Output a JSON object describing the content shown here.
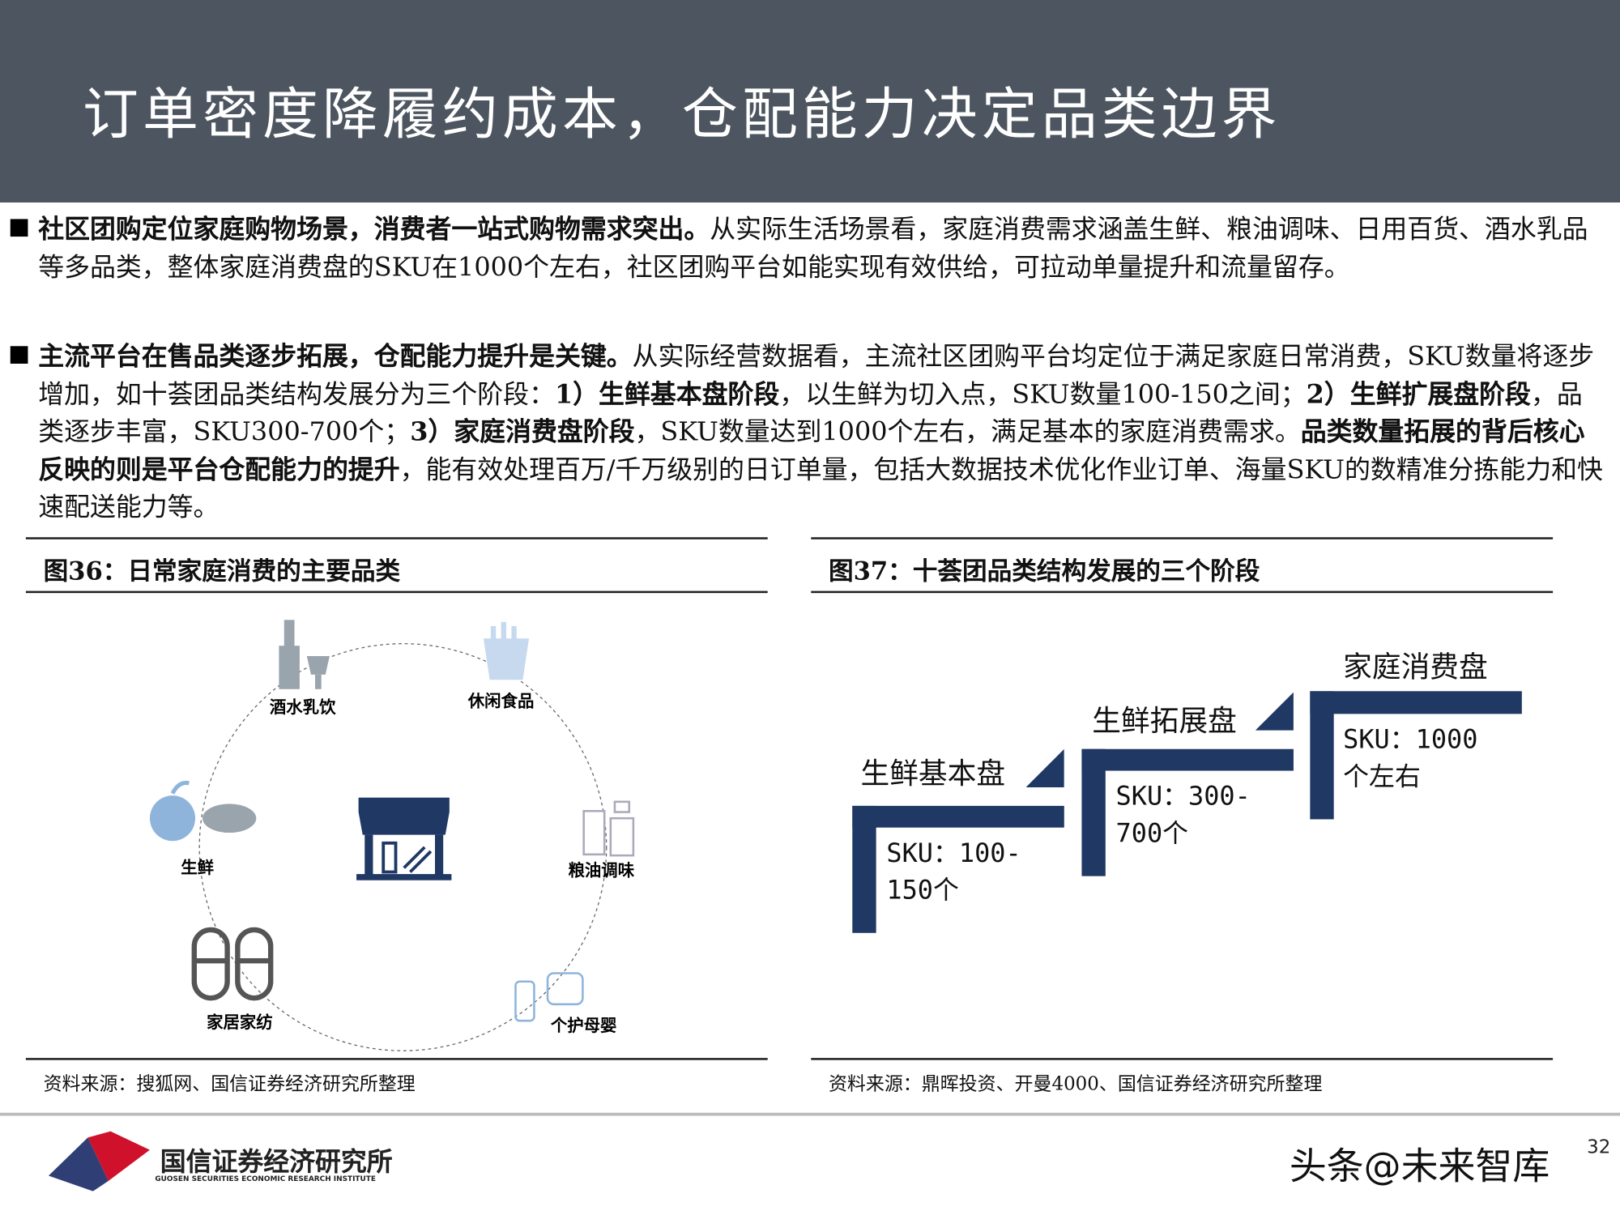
{
  "header": {
    "title": "订单密度降履约成本，仓配能力决定品类边界"
  },
  "paragraphs": [
    {
      "bold": "社区团购定位家庭购物场景，消费者一站式购物需求突出。",
      "text": "从实际生活场景看，家庭消费需求涵盖生鲜、粮油调味、日用百货、酒水乳品等多品类，整体家庭消费盘的SKU在1000个左右，社区团购平台如能实现有效供给，可拉动单量提升和流量留存。"
    },
    {
      "bold": "主流平台在售品类逐步拓展，仓配能力提升是关键。",
      "t1": "从实际经营数据看，主流社区团购平台均定位于满足家庭日常消费，SKU数量将逐步增加，如十荟团品类结构发展分为三个阶段：",
      "b1": "1）生鲜基本盘阶段",
      "t2": "，以生鲜为切入点，SKU数量100-150之间；",
      "b2": "2）生鲜扩展盘阶段",
      "t3": "，品类逐步丰富，SKU300-700个；",
      "b3": "3）家庭消费盘阶段",
      "t4": "，SKU数量达到1000个左右，满足基本的家庭消费需求。",
      "b4": "品类数量拓展的背后核心反映的则是平台仓配能力的提升",
      "t5": "，能有效处理百万/千万级别的日订单量，包括大数据技术优化作业订单、海量SKU的数精准分拣能力和快速配送能力等。"
    }
  ],
  "figure36": {
    "title": "图36：日常家庭消费的主要品类",
    "center_icon": "storefront-icon",
    "categories": [
      {
        "label": "酒水乳饮",
        "icon": "wine-bottle-icon"
      },
      {
        "label": "休闲食品",
        "icon": "fries-icon"
      },
      {
        "label": "生鲜",
        "icon": "apple-crab-icon"
      },
      {
        "label": "粮油调味",
        "icon": "bottles-icon"
      },
      {
        "label": "家居家纺",
        "icon": "slippers-icon"
      },
      {
        "label": "个护母婴",
        "icon": "baby-bottle-icon"
      }
    ],
    "source": "资料来源：搜狐网、国信证券经济研究所整理"
  },
  "figure37": {
    "title": "图37：十荟团品类结构发展的三个阶段",
    "stages": [
      {
        "label": "生鲜基本盘",
        "sku1": "SKU：100-",
        "sku2": "150个"
      },
      {
        "label": "生鲜拓展盘",
        "sku1": "SKU：300-",
        "sku2": "700个"
      },
      {
        "label": "家庭消费盘",
        "sku1": "SKU：1000",
        "sku2": "个左右"
      }
    ],
    "color": "#1f3864",
    "source": "资料来源：鼎晖投资、开曼4000、国信证券经济研究所整理"
  },
  "footer": {
    "logo_cn": "国信证券经济研究所",
    "logo_en": "GUOSEN SECURITIES ECONOMIC RESEARCH INSTITUTE",
    "watermark": "头条@未来智库",
    "page": "32"
  }
}
